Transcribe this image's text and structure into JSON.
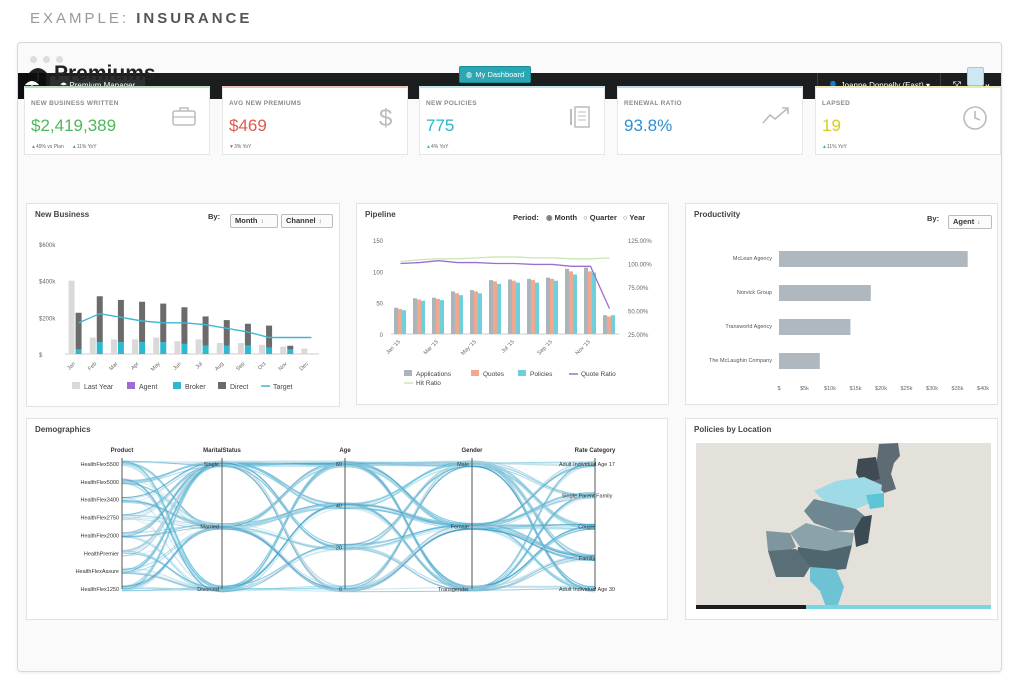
{
  "header_caption": {
    "prefix": "EXAMPLE:",
    "subject": "INSURANCE"
  },
  "topbar": {
    "app_tab": "Premium Manager",
    "user": "Joanne Donnelly (East)"
  },
  "page": {
    "title": "Premiums",
    "dashboard_button": "My Dashboard"
  },
  "colors": {
    "green": "#5cb85c",
    "red": "#e05a4e",
    "teal": "#2bb5c6",
    "blue": "#2b8fd6",
    "yellow": "#d6cd1f",
    "topbar": "#1b1d1f"
  },
  "kpis": [
    {
      "label": "NEW BUSINESS WRITTEN",
      "value": "$2,419,389",
      "sub1": "49% vs Plan",
      "sub2": "11% YoY",
      "color": "#4db85b",
      "border": "#b9e0bd",
      "icon": "briefcase-icon"
    },
    {
      "label": "AVG NEW PREMIUMS",
      "value": "$469",
      "sub1": "3% YoY",
      "sub2": "",
      "color": "#e05a4e",
      "border": "#f2c0ba",
      "icon": "dollar-icon"
    },
    {
      "label": "NEW POLICIES",
      "value": "775",
      "sub1": "4% YoY",
      "sub2": "",
      "color": "#2bb5c6",
      "border": "#bfe6ec",
      "icon": "policy-icon"
    },
    {
      "label": "RENEWAL RATIO",
      "value": "93.8%",
      "sub1": "",
      "sub2": "",
      "color": "#2b8fd6",
      "border": "#bcd9f0",
      "icon": "trend-icon"
    },
    {
      "label": "LAPSED",
      "value": "19",
      "sub1": "11% YoY",
      "sub2": "",
      "color": "#d6cd1f",
      "border": "#ece8b5",
      "icon": "clock-icon"
    }
  ],
  "new_business": {
    "title": "New Business",
    "by_label": "By:",
    "select_period": "Month",
    "select_group": "Channel",
    "legend": [
      "Last Year",
      "Agent",
      "Broker",
      "Direct",
      "Target"
    ]
  },
  "pipeline": {
    "title": "Pipeline",
    "period_label": "Period:",
    "period_options": [
      "Month",
      "Quarter",
      "Year"
    ],
    "legend": [
      "Applications",
      "Quotes",
      "Policies",
      "Quote Ratio",
      "Hit Ratio"
    ]
  },
  "productivity": {
    "title": "Productivity",
    "by_label": "By:",
    "select": "Agent"
  },
  "demographics": {
    "title": "Demographics",
    "axes": [
      {
        "name": "Product",
        "labels": [
          "HealthFlex5500",
          "HealthFlex5000",
          "HealthFlex3400",
          "HealthFlex2750",
          "HealthFlex2000",
          "HealthPremier",
          "HealthFlexAssure",
          "HealthFlex1250"
        ]
      },
      {
        "name": "MaritalStatus",
        "labels": [
          "Single",
          "Married",
          "Divorced"
        ]
      },
      {
        "name": "Age",
        "labels": [
          "60",
          "40",
          "20",
          "0"
        ]
      },
      {
        "name": "Gender",
        "labels": [
          "Male",
          "Female",
          "Transgender"
        ]
      },
      {
        "name": "Rate Category",
        "labels": [
          "Adult Individual Age 17",
          "Single Parent Family",
          "Couple",
          "Family",
          "Adult Individual Age 30"
        ]
      }
    ]
  },
  "policies_by_location": {
    "title": "Policies by Location"
  },
  "chart_data": [
    {
      "type": "bar",
      "title": "New Business",
      "categories": [
        "Jan",
        "Feb",
        "Mar",
        "Apr",
        "May",
        "Jun",
        "Jul",
        "Aug",
        "Sep",
        "Oct",
        "Nov",
        "Dec"
      ],
      "ylim": [
        0,
        600000
      ],
      "yticks": [
        "$600k",
        "$400k",
        "$200k",
        "$"
      ],
      "series": [
        {
          "name": "Last Year",
          "values": [
            400000,
            90000,
            80000,
            80000,
            90000,
            70000,
            80000,
            60000,
            60000,
            50000,
            40000,
            30000
          ]
        },
        {
          "name": "Agent",
          "values": [
            5000,
            5000,
            5000,
            5000,
            5000,
            5000,
            5000,
            5000,
            5000,
            5000,
            5000,
            0
          ]
        },
        {
          "name": "Broker",
          "values": [
            20000,
            60000,
            60000,
            60000,
            60000,
            50000,
            40000,
            40000,
            40000,
            30000,
            20000,
            0
          ]
        },
        {
          "name": "Direct",
          "values": [
            200000,
            250000,
            230000,
            220000,
            210000,
            200000,
            160000,
            140000,
            120000,
            120000,
            20000,
            0
          ]
        },
        {
          "name": "Target",
          "values": [
            170000,
            220000,
            200000,
            180000,
            170000,
            170000,
            160000,
            140000,
            120000,
            90000,
            90000,
            90000
          ]
        }
      ]
    },
    {
      "type": "bar",
      "title": "Pipeline",
      "categories": [
        "Jan '15",
        "Feb '15",
        "Mar '15",
        "Apr '15",
        "May '15",
        "Jun '15",
        "Jul '15",
        "Aug '15",
        "Sep '15",
        "Oct '15",
        "Nov '15",
        "Dec '15"
      ],
      "x_ticks": [
        "Jan '15",
        "Mar '15",
        "May '15",
        "Jul '15",
        "Sep '15",
        "Nov '15"
      ],
      "ylim": [
        0,
        150
      ],
      "yticks_left": [
        "150",
        "100",
        "50",
        "0"
      ],
      "yticks_right": [
        "125.00%",
        "100.00%",
        "75.00%",
        "50.00%",
        "25.00%"
      ],
      "y2lim": [
        25,
        125
      ],
      "series": [
        {
          "name": "Applications",
          "values": [
            42,
            57,
            58,
            68,
            70,
            86,
            87,
            88,
            90,
            104,
            106,
            30
          ]
        },
        {
          "name": "Quotes",
          "values": [
            40,
            55,
            56,
            65,
            68,
            84,
            85,
            86,
            88,
            100,
            100,
            28
          ]
        },
        {
          "name": "Policies",
          "values": [
            38,
            53,
            54,
            62,
            65,
            80,
            82,
            82,
            85,
            95,
            98,
            30
          ]
        },
        {
          "name": "Quote Ratio",
          "values": [
            100,
            101,
            103,
            101,
            101,
            100,
            100,
            99,
            99,
            97,
            97,
            52
          ]
        },
        {
          "name": "Hit Ratio",
          "values": [
            102,
            104,
            105,
            105,
            106,
            107,
            107,
            106,
            106,
            105,
            105,
            106
          ]
        }
      ]
    },
    {
      "type": "bar",
      "title": "Productivity",
      "categories": [
        "McLean Agency",
        "Norvick Group",
        "Transworld Agency",
        "The McLaughin Company"
      ],
      "values": [
        37000,
        18000,
        14000,
        8000
      ],
      "ylim": [
        0,
        40000
      ],
      "xticks": [
        "$",
        "$5k",
        "$10k",
        "$15k",
        "$20k",
        "$25k",
        "$30k",
        "$35k",
        "$40k"
      ]
    }
  ]
}
